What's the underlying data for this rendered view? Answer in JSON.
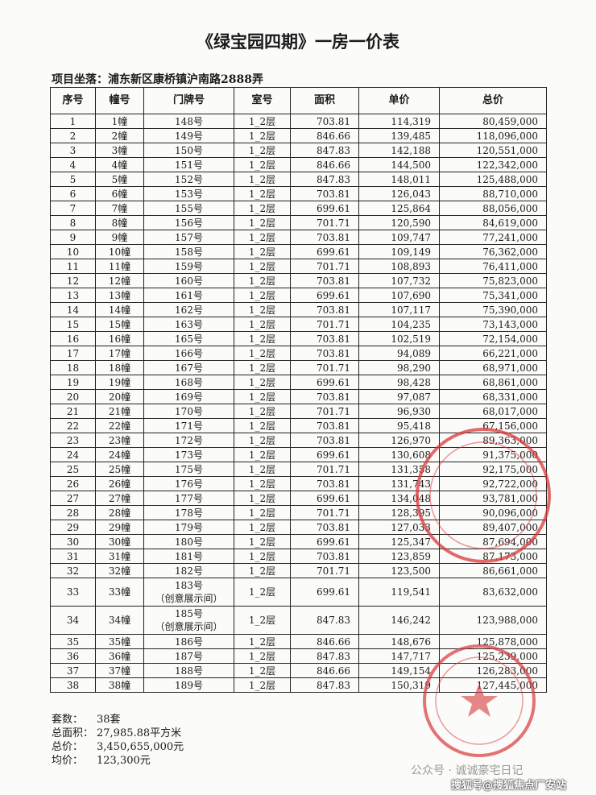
{
  "title": "《绿宝园四期》一房一价表",
  "project": "项目坐落：浦东新区康桥镇沪南路2888弄",
  "table": {
    "header": [
      "序号",
      "幢号",
      "门牌号",
      "室号",
      "面积",
      "单价",
      "总价"
    ],
    "rows": [
      [
        "1",
        "1幢",
        "148号",
        "1_2层",
        "703.81",
        "114,319",
        "80,459,000"
      ],
      [
        "2",
        "2幢",
        "149号",
        "1_2层",
        "846.66",
        "139,485",
        "118,096,000"
      ],
      [
        "3",
        "3幢",
        "150号",
        "1_2层",
        "847.83",
        "142,188",
        "120,551,000"
      ],
      [
        "4",
        "4幢",
        "151号",
        "1_2层",
        "846.66",
        "144,500",
        "122,342,000"
      ],
      [
        "5",
        "5幢",
        "152号",
        "1_2层",
        "847.83",
        "148,011",
        "125,488,000"
      ],
      [
        "6",
        "6幢",
        "153号",
        "1_2层",
        "703.81",
        "126,043",
        "88,710,000"
      ],
      [
        "7",
        "7幢",
        "155号",
        "1_2层",
        "699.61",
        "125,864",
        "88,056,000"
      ],
      [
        "8",
        "8幢",
        "156号",
        "1_2层",
        "701.71",
        "120,590",
        "84,619,000"
      ],
      [
        "9",
        "9幢",
        "157号",
        "1_2层",
        "703.81",
        "109,747",
        "77,241,000"
      ],
      [
        "10",
        "10幢",
        "158号",
        "1_2层",
        "699.61",
        "109,149",
        "76,362,000"
      ],
      [
        "11",
        "11幢",
        "159号",
        "1_2层",
        "701.71",
        "108,893",
        "76,411,000"
      ],
      [
        "12",
        "12幢",
        "160号",
        "1_2层",
        "703.81",
        "107,732",
        "75,823,000"
      ],
      [
        "13",
        "13幢",
        "161号",
        "1_2层",
        "699.61",
        "107,690",
        "75,341,000"
      ],
      [
        "14",
        "14幢",
        "162号",
        "1_2层",
        "703.81",
        "107,117",
        "75,390,000"
      ],
      [
        "15",
        "15幢",
        "163号",
        "1_2层",
        "701.71",
        "104,235",
        "73,143,000"
      ],
      [
        "16",
        "16幢",
        "165号",
        "1_2层",
        "703.81",
        "102,519",
        "72,154,000"
      ],
      [
        "17",
        "17幢",
        "166号",
        "1_2层",
        "703.81",
        "94,089",
        "66,221,000"
      ],
      [
        "18",
        "18幢",
        "167号",
        "1_2层",
        "701.71",
        "98,290",
        "68,971,000"
      ],
      [
        "19",
        "19幢",
        "168号",
        "1_2层",
        "699.61",
        "98,428",
        "68,861,000"
      ],
      [
        "20",
        "20幢",
        "169号",
        "1_2层",
        "703.81",
        "97,087",
        "68,331,000"
      ],
      [
        "21",
        "21幢",
        "170号",
        "1_2层",
        "701.71",
        "96,930",
        "68,017,000"
      ],
      [
        "22",
        "22幢",
        "171号",
        "1_2层",
        "703.81",
        "95,418",
        "67,156,000"
      ],
      [
        "23",
        "23幢",
        "172号",
        "1_2层",
        "703.81",
        "126,970",
        "89,363,000"
      ],
      [
        "24",
        "24幢",
        "173号",
        "1_2层",
        "699.61",
        "130,608",
        "91,375,000"
      ],
      [
        "25",
        "25幢",
        "175号",
        "1_2层",
        "701.71",
        "131,358",
        "92,175,000"
      ],
      [
        "26",
        "26幢",
        "176号",
        "1_2层",
        "703.81",
        "131,743",
        "92,722,000"
      ],
      [
        "27",
        "27幢",
        "177号",
        "1_2层",
        "699.61",
        "134,048",
        "93,781,000"
      ],
      [
        "28",
        "28幢",
        "178号",
        "1_2层",
        "701.71",
        "128,395",
        "90,096,000"
      ],
      [
        "29",
        "29幢",
        "179号",
        "1_2层",
        "703.81",
        "127,033",
        "89,407,000"
      ],
      [
        "30",
        "30幢",
        "180号",
        "1_2层",
        "699.61",
        "125,347",
        "87,694,000"
      ],
      [
        "31",
        "31幢",
        "181号",
        "1_2层",
        "703.81",
        "123,859",
        "87,173,000"
      ],
      [
        "32",
        "32幢",
        "182号",
        "1_2层",
        "701.71",
        "123,500",
        "86,661,000"
      ],
      [
        "33",
        "33幢",
        "183号\n（创意展示间）",
        "1_2层",
        "699.61",
        "119,541",
        "83,632,000"
      ],
      [
        "34",
        "34幢",
        "185号\n（创意展示间）",
        "1_2层",
        "847.83",
        "146,242",
        "123,988,000"
      ],
      [
        "35",
        "35幢",
        "186号",
        "1_2层",
        "846.66",
        "148,676",
        "125,878,000"
      ],
      [
        "36",
        "36幢",
        "187号",
        "1_2层",
        "847.83",
        "147,717",
        "125,239,000"
      ],
      [
        "37",
        "37幢",
        "188号",
        "1_2层",
        "846.66",
        "149,154",
        "126,283,000"
      ],
      [
        "38",
        "38幢",
        "189号",
        "1_2层",
        "847.83",
        "150,319",
        "127,445,000"
      ]
    ]
  },
  "summary": [
    {
      "label": "套数：",
      "value": "38套"
    },
    {
      "label": "总面积：",
      "value": "27,985.88平方米"
    },
    {
      "label": "总价：",
      "value": "3,450,655,000元"
    },
    {
      "label": "均价：",
      "value": "123,300元"
    }
  ],
  "watermarks": [
    "公众号 · 诚诚豪宅日记",
    "搜狐号@搜狐焦点厂安站"
  ]
}
